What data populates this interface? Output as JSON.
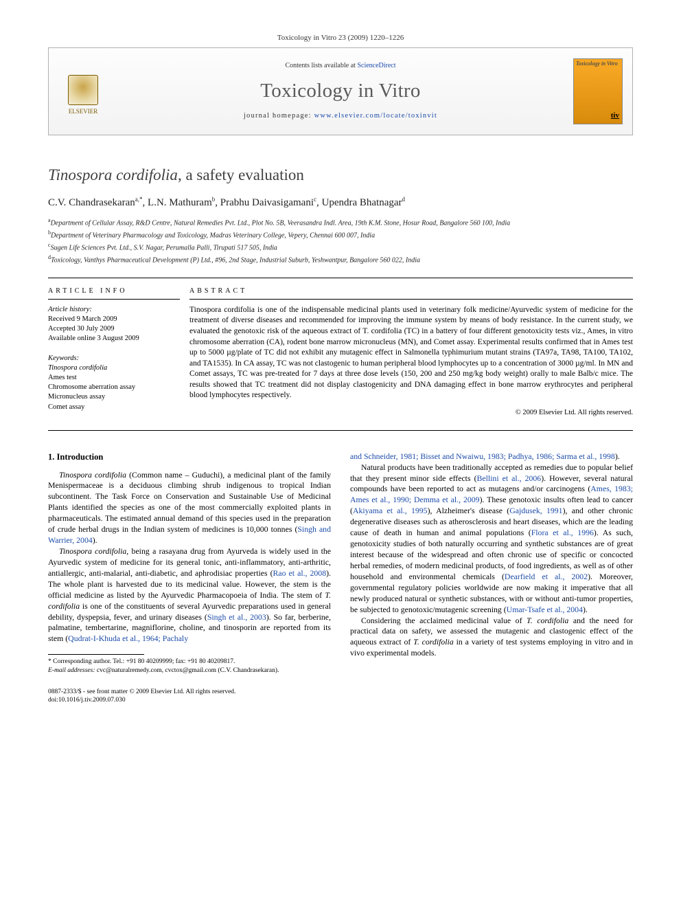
{
  "header": {
    "running_head": "Toxicology in Vitro 23 (2009) 1220–1226",
    "contents_line_prefix": "Contents lists available at ",
    "contents_link_text": "ScienceDirect",
    "journal_name": "Toxicology in Vitro",
    "homepage_prefix": "journal homepage: ",
    "homepage_url": "www.elsevier.com/locate/toxinvit",
    "publisher_logo_text": "ELSEVIER",
    "cover_title": "Toxicology in Vitro",
    "cover_abbrev": "tiv"
  },
  "article": {
    "title_pre": "Tinospora cordifolia",
    "title_post": ", a safety evaluation",
    "authors_html": "C.V. Chandrasekaran",
    "author_a_sup": "a,*",
    "author_b": ", L.N. Mathuram",
    "author_b_sup": "b",
    "author_c": ", Prabhu Daivasigamani",
    "author_c_sup": "c",
    "author_d": ", Upendra Bhatnagar",
    "author_d_sup": "d",
    "affiliations": {
      "a": "Department of Cellular Assay, R&D Centre, Natural Remedies Pvt. Ltd., Plot No. 5B, Veerasandra Indl. Area, 19th K.M. Stone, Hosur Road, Bangalore 560 100, India",
      "b": "Department of Veterinary Pharmacology and Toxicology, Madras Veterinary College, Vepery, Chennai 600 007, India",
      "c": "Sugen Life Sciences Pvt. Ltd., S.V. Nagar, Perumalla Palli, Tirupati 517 505, India",
      "d": "Toxicology, Vanthys Pharmaceutical Development (P) Ltd., #96, 2nd Stage, Industrial Suburb, Yeshwantpur, Bangalore 560 022, India"
    }
  },
  "info": {
    "section_head": "article info",
    "history_label": "Article history:",
    "received": "Received 9 March 2009",
    "accepted": "Accepted 30 July 2009",
    "online": "Available online 3 August 2009",
    "keywords_label": "Keywords:",
    "keywords": [
      "Tinospora cordifolia",
      "Ames test",
      "Chromosome aberration assay",
      "Micronucleus assay",
      "Comet assay"
    ]
  },
  "abstract": {
    "section_head": "abstract",
    "text": "Tinospora cordifolia is one of the indispensable medicinal plants used in veterinary folk medicine/Ayurvedic system of medicine for the treatment of diverse diseases and recommended for improving the immune system by means of body resistance. In the current study, we evaluated the genotoxic risk of the aqueous extract of T. cordifolia (TC) in a battery of four different genotoxicity tests viz., Ames, in vitro chromosome aberration (CA), rodent bone marrow micronucleus (MN), and Comet assay. Experimental results confirmed that in Ames test up to 5000 µg/plate of TC did not exhibit any mutagenic effect in Salmonella typhimurium mutant strains (TA97a, TA98, TA100, TA102, and TA1535). In CA assay, TC was not clastogenic to human peripheral blood lymphocytes up to a concentration of 3000 µg/ml. In MN and Comet assays, TC was pre-treated for 7 days at three dose levels (150, 200 and 250 mg/kg body weight) orally to male Balb/c mice. The results showed that TC treatment did not display clastogenicity and DNA damaging effect in bone marrow erythrocytes and peripheral blood lymphocytes respectively.",
    "copyright": "© 2009 Elsevier Ltd. All rights reserved."
  },
  "body": {
    "h1": "1. Introduction",
    "p1a": "Tinospora cordifolia",
    "p1b": " (Common name – Guduchi), a medicinal plant of the family Menispermaceae is a deciduous climbing shrub indigenous to tropical Indian subcontinent. The Task Force on Conservation and Sustainable Use of Medicinal Plants identified the species as one of the most commercially exploited plants in pharmaceuticals. The estimated annual demand of this species used in the preparation of crude herbal drugs in the Indian system of medicines is 10,000 tonnes (",
    "p1c": "Singh and Warrier, 2004",
    "p1d": ").",
    "p2a": "Tinospora cordifolia",
    "p2b": ", being a rasayana drug from Ayurveda is widely used in the Ayurvedic system of medicine for its general tonic, anti-inflammatory, anti-arthritic, antiallergic, anti-malarial, anti-diabetic, and aphrodisiac properties (",
    "p2c": "Rao et al., 2008",
    "p2d": "). The whole plant is harvested due to its medicinal value. However, the stem is the official medicine as listed by the Ayurvedic Pharmacopoeia of India. The stem of ",
    "p2e": "T. cordifolia",
    "p2f": " is one of the constituents of several Ayurvedic preparations used in general debility, dyspepsia, fever, and urinary diseases (",
    "p2g": "Singh et al., 2003",
    "p2h": "). So far, berberine, palmatine, tembertarine, magniflorine, choline, and tinosporin are reported from its stem (",
    "p2i": "Qudrat-I-Khuda et al., 1964; Pachaly ",
    "p3a": "and Schneider, 1981; Bisset and Nwaiwu, 1983; Padhya, 1986; Sarma et al., 1998",
    "p3b": ").",
    "p4a": "Natural products have been traditionally accepted as remedies due to popular belief that they present minor side effects (",
    "p4b": "Bellini et al., 2006",
    "p4c": "). However, several natural compounds have been reported to act as mutagens and/or carcinogens (",
    "p4d": "Ames, 1983; Ames et al., 1990; Demma et al., 2009",
    "p4e": "). These genotoxic insults often lead to cancer (",
    "p4f": "Akiyama et al., 1995",
    "p4g": "), Alzheimer's disease (",
    "p4h": "Gajdusek, 1991",
    "p4i": "), and other chronic degenerative diseases such as atherosclerosis and heart diseases, which are the leading cause of death in human and animal populations (",
    "p4j": "Flora et al., 1996",
    "p4k": "). As such, genotoxicity studies of both naturally occurring and synthetic substances are of great interest because of the widespread and often chronic use of specific or concocted herbal remedies, of modern medicinal products, of food ingredients, as well as of other household and environmental chemicals (",
    "p4l": "Dearfield et al., 2002",
    "p4m": "). Moreover, governmental regulatory policies worldwide are now making it imperative that all newly produced natural or synthetic substances, with or without anti-tumor properties, be subjected to genotoxic/mutagenic screening (",
    "p4n": "Umar-Tsafe et al., 2004",
    "p4o": ").",
    "p5a": "Considering the acclaimed medicinal value of ",
    "p5b": "T. cordifolia",
    "p5c": " and the need for practical data on safety, we assessed the mutagenic and clastogenic effect of the aqueous extract of ",
    "p5d": "T. cordifolia",
    "p5e": " in a variety of test systems employing in vitro and in vivo experimental models."
  },
  "footnotes": {
    "corr": "* Corresponding author. Tel.: +91 80 40209999; fax: +91 80 40209817.",
    "email_label": "E-mail addresses:",
    "emails": " cvc@naturalremedy.com, cvctox@gmail.com (C.V. Chandrasekaran)."
  },
  "footer": {
    "line1": "0887-2333/$ - see front matter © 2009 Elsevier Ltd. All rights reserved.",
    "line2": "doi:10.1016/j.tiv.2009.07.030"
  }
}
